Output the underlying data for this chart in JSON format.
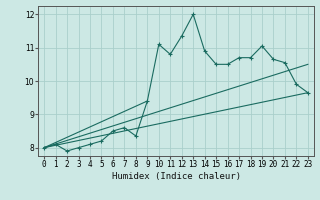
{
  "title": "",
  "xlabel": "Humidex (Indice chaleur)",
  "ylabel": "",
  "bg_color": "#cce8e4",
  "grid_color": "#aacfcb",
  "line_color": "#1a6b60",
  "xlim": [
    -0.5,
    23.5
  ],
  "ylim": [
    7.75,
    12.25
  ],
  "xticks": [
    0,
    1,
    2,
    3,
    4,
    5,
    6,
    7,
    8,
    9,
    10,
    11,
    12,
    13,
    14,
    15,
    16,
    17,
    18,
    19,
    20,
    21,
    22,
    23
  ],
  "yticks": [
    8,
    9,
    10,
    11,
    12
  ],
  "main_x": [
    0,
    1,
    2,
    3,
    4,
    5,
    6,
    7,
    8,
    9,
    10,
    11,
    12,
    13,
    14,
    15,
    16,
    17,
    18,
    19,
    20,
    21,
    22,
    23
  ],
  "main_y": [
    8.0,
    8.1,
    7.9,
    8.0,
    8.1,
    8.2,
    8.5,
    8.6,
    8.35,
    9.4,
    11.1,
    10.8,
    11.35,
    12.0,
    10.9,
    10.5,
    10.5,
    10.7,
    10.7,
    11.05,
    10.65,
    10.55,
    9.9,
    9.65
  ],
  "line1_x": [
    0,
    23
  ],
  "line1_y": [
    8.0,
    9.65
  ],
  "line2_x": [
    0,
    23
  ],
  "line2_y": [
    8.0,
    10.5
  ],
  "line3_x": [
    0,
    9
  ],
  "line3_y": [
    8.0,
    9.4
  ]
}
